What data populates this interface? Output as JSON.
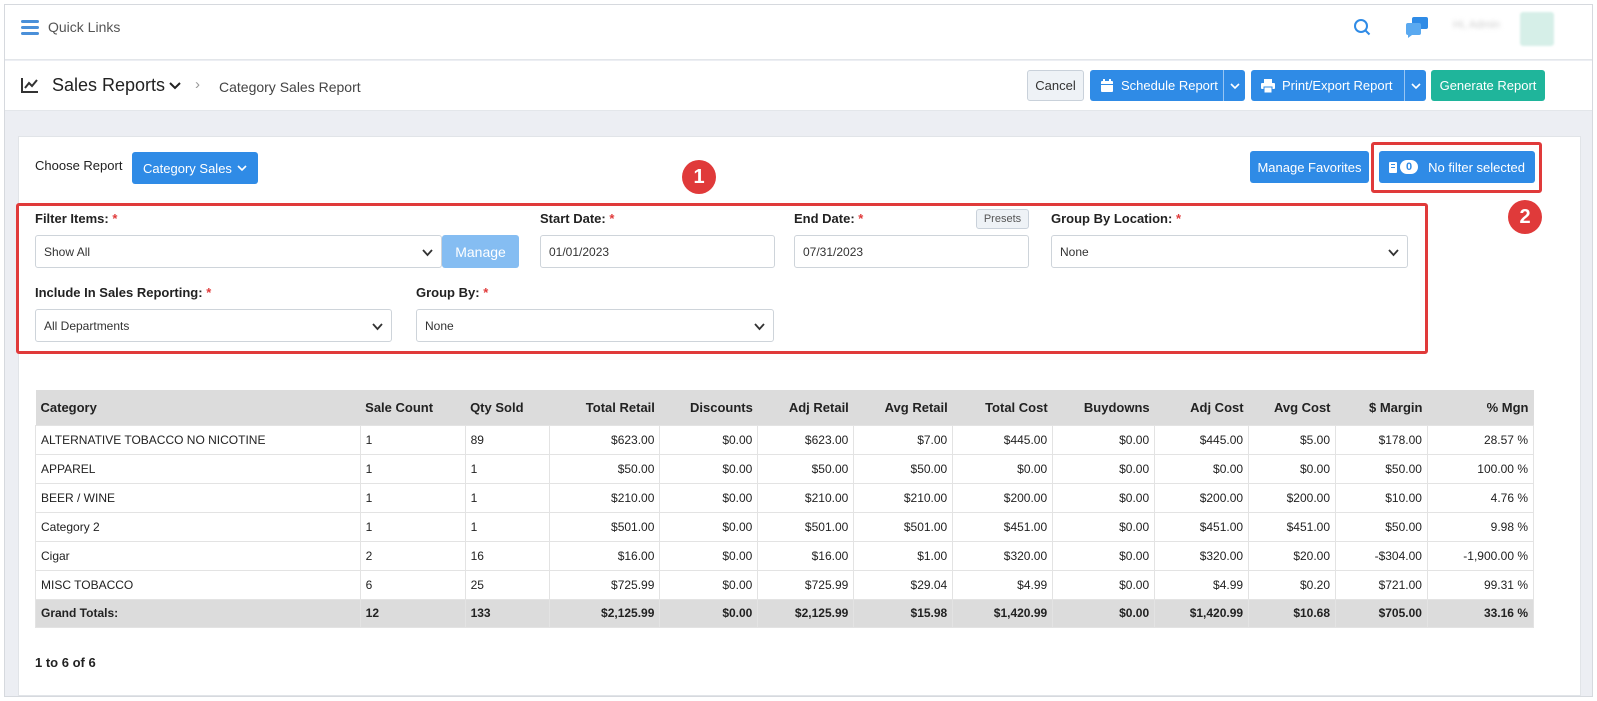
{
  "topbar": {
    "quick_links": "Quick Links",
    "user_name": "Hi, Admin"
  },
  "header": {
    "title": "Sales Reports",
    "breadcrumb": "Category Sales Report",
    "cancel": "Cancel",
    "schedule": "Schedule Report",
    "print_export": "Print/Export Report",
    "generate": "Generate Report"
  },
  "report": {
    "choose_label": "Choose Report",
    "choose_value": "Category Sales",
    "manage_favorites": "Manage Favorites",
    "filter_count": "0",
    "filter_text": "No filter selected"
  },
  "markers": {
    "one": "1",
    "two": "2"
  },
  "filters": {
    "filter_items_label": "Filter Items:",
    "filter_items_value": "Show All",
    "manage": "Manage",
    "start_date_label": "Start Date:",
    "start_date_value": "01/01/2023",
    "end_date_label": "End Date:",
    "end_date_value": "07/31/2023",
    "presets": "Presets",
    "group_location_label": "Group By Location:",
    "group_location_value": "None",
    "include_label": "Include In Sales Reporting:",
    "include_value": "All Departments",
    "group_by_label": "Group By:",
    "group_by_value": "None",
    "required_mark": "*"
  },
  "table": {
    "headers": [
      "Category",
      "Sale Count",
      "Qty Sold",
      "Total Retail",
      "Discounts",
      "Adj Retail",
      "Avg Retail",
      "Total Cost",
      "Buydowns",
      "Adj Cost",
      "Avg Cost",
      "$ Margin",
      "% Mgn"
    ],
    "rows": [
      [
        "ALTERNATIVE TOBACCO NO NICOTINE",
        "1",
        "89",
        "$623.00",
        "$0.00",
        "$623.00",
        "$7.00",
        "$445.00",
        "$0.00",
        "$445.00",
        "$5.00",
        "$178.00",
        "28.57 %"
      ],
      [
        "APPAREL",
        "1",
        "1",
        "$50.00",
        "$0.00",
        "$50.00",
        "$50.00",
        "$0.00",
        "$0.00",
        "$0.00",
        "$0.00",
        "$50.00",
        "100.00 %"
      ],
      [
        "BEER / WINE",
        "1",
        "1",
        "$210.00",
        "$0.00",
        "$210.00",
        "$210.00",
        "$200.00",
        "$0.00",
        "$200.00",
        "$200.00",
        "$10.00",
        "4.76 %"
      ],
      [
        "Category 2",
        "1",
        "1",
        "$501.00",
        "$0.00",
        "$501.00",
        "$501.00",
        "$451.00",
        "$0.00",
        "$451.00",
        "$451.00",
        "$50.00",
        "9.98 %"
      ],
      [
        "Cigar",
        "2",
        "16",
        "$16.00",
        "$0.00",
        "$16.00",
        "$1.00",
        "$320.00",
        "$0.00",
        "$320.00",
        "$20.00",
        "-$304.00",
        "-1,900.00 %"
      ],
      [
        "MISC TOBACCO",
        "6",
        "25",
        "$725.99",
        "$0.00",
        "$725.99",
        "$29.04",
        "$4.99",
        "$0.00",
        "$4.99",
        "$0.20",
        "$721.00",
        "99.31 %"
      ]
    ],
    "totals": [
      "Grand Totals:",
      "12",
      "133",
      "$2,125.99",
      "$0.00",
      "$2,125.99",
      "$15.98",
      "$1,420.99",
      "$0.00",
      "$1,420.99",
      "$10.68",
      "$705.00",
      "33.16 %"
    ]
  },
  "pager": "1 to 6 of 6",
  "colors": {
    "primary": "#2f8be6",
    "generate": "#1fb59b",
    "highlight": "#e03a3a"
  },
  "icons": {
    "menu": "hamburger-icon",
    "search": "search-icon",
    "chat": "chat-icon",
    "report": "line-chart-icon",
    "calendar": "calendar-icon",
    "printer": "printer-icon",
    "filter": "filter-icon"
  }
}
